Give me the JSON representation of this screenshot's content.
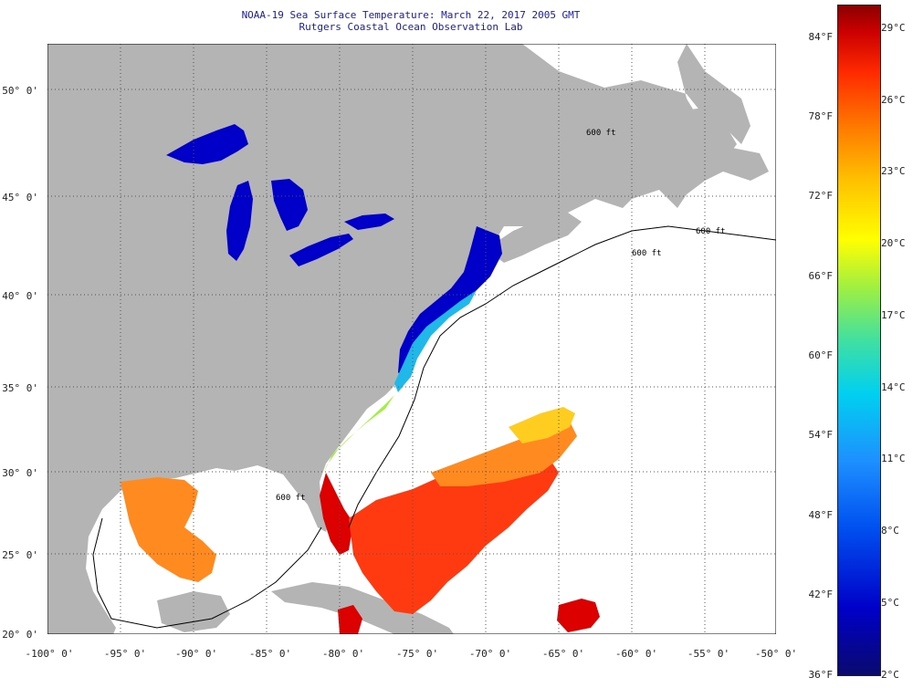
{
  "header": {
    "title": "NOAA-19 Sea Surface Temperature:  March 22, 2017 2005 GMT",
    "subtitle": "Rutgers Coastal Ocean Observation Lab"
  },
  "map": {
    "lat_ticks": [
      "50° 0'",
      "45° 0'",
      "40° 0'",
      "35° 0'",
      "30° 0'",
      "25° 0'",
      "20° 0'"
    ],
    "lon_ticks": [
      "-100° 0'",
      "-95° 0'",
      "-90° 0'",
      "-85° 0'",
      "-80° 0'",
      "-75° 0'",
      "-70° 0'",
      "-65° 0'",
      "-60° 0'",
      "-55° 0'",
      "-50° 0'"
    ],
    "contour_labels": [
      "600 ft",
      "600 ft",
      "600 ft",
      "600 ft"
    ],
    "colors": {
      "land": "#b4b4b4",
      "cloud": "#ffffff",
      "cold": "#0000c8",
      "warm": "#ff3a10",
      "hot": "#dd0000",
      "mid": "#ff8a20"
    }
  },
  "colorbar": {
    "fahrenheit": [
      "84°F",
      "78°F",
      "72°F",
      "66°F",
      "60°F",
      "54°F",
      "48°F",
      "42°F",
      "36°F"
    ],
    "celsius": [
      "29°C",
      "26°C",
      "23°C",
      "20°C",
      "17°C",
      "14°C",
      "11°C",
      "8°C",
      "5°C",
      "2°C"
    ]
  }
}
